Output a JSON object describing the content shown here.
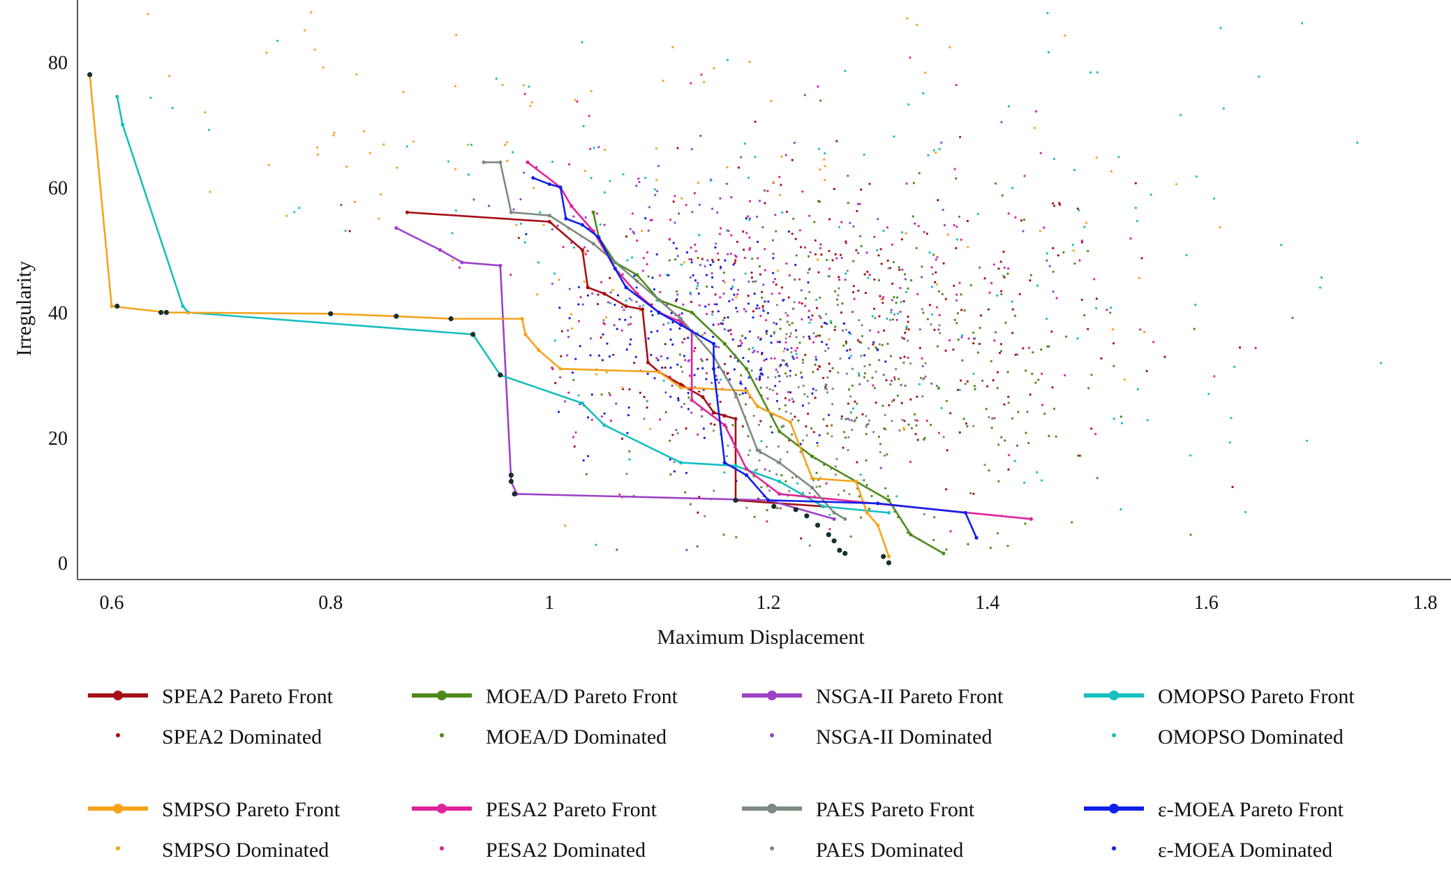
{
  "chart_data": {
    "type": "scatter",
    "title": "",
    "xlabel": "Maximum Displacement",
    "ylabel": "Irregularity",
    "xlim": [
      0.57,
      1.83
    ],
    "ylim": [
      -3,
      90
    ],
    "grid": false,
    "x_ticks": [
      0.6,
      0.8,
      1,
      1.2,
      1.4,
      1.6,
      1.8
    ],
    "x_tick_labels": [
      "0.6",
      "0.8",
      "1",
      "1.2",
      "1.4",
      "1.6",
      "1.8"
    ],
    "y_ticks": [
      0,
      20,
      40,
      60,
      80
    ],
    "y_tick_labels": [
      "0",
      "20",
      "40",
      "60",
      "80"
    ],
    "legend_position": "bottom",
    "series": [
      {
        "name": "SPEA2",
        "color": "#a50f15",
        "front_label": "SPEA2 Pareto Front",
        "dominated_label": "SPEA2 Dominated",
        "front": [
          [
            0.87,
            56
          ],
          [
            1.0,
            54.5
          ],
          [
            1.03,
            50
          ],
          [
            1.035,
            44
          ],
          [
            1.05,
            43
          ],
          [
            1.07,
            41
          ],
          [
            1.085,
            40.5
          ],
          [
            1.09,
            32
          ],
          [
            1.1,
            30.5
          ],
          [
            1.12,
            28.5
          ],
          [
            1.14,
            26.5
          ],
          [
            1.15,
            24
          ],
          [
            1.16,
            23.5
          ],
          [
            1.17,
            23
          ],
          [
            1.17,
            10
          ],
          [
            1.25,
            9
          ]
        ],
        "dominated_center": [
          1.27,
          38
        ],
        "dominated_spread": [
          0.13,
          13
        ],
        "dominated_count": 260
      },
      {
        "name": "MOEA/D",
        "color": "#4d8a1b",
        "front_label": "MOEA/D Pareto Front",
        "dominated_label": "MOEA/D Dominated",
        "front": [
          [
            1.04,
            56
          ],
          [
            1.045,
            52
          ],
          [
            1.06,
            48
          ],
          [
            1.08,
            46
          ],
          [
            1.1,
            42
          ],
          [
            1.13,
            40
          ],
          [
            1.16,
            35
          ],
          [
            1.18,
            31
          ],
          [
            1.21,
            21
          ],
          [
            1.24,
            17
          ],
          [
            1.28,
            13
          ],
          [
            1.31,
            10
          ],
          [
            1.33,
            4.5
          ],
          [
            1.36,
            1.5
          ]
        ],
        "dominated_center": [
          1.3,
          28
        ],
        "dominated_spread": [
          0.12,
          14
        ],
        "dominated_count": 300
      },
      {
        "name": "NSGA-II",
        "color": "#9c42c6",
        "front_label": "NSGA-II Pareto Front",
        "dominated_label": "NSGA-II Dominated",
        "front": [
          [
            0.86,
            53.5
          ],
          [
            0.9,
            50
          ],
          [
            0.92,
            48
          ],
          [
            0.955,
            47.5
          ],
          [
            0.965,
            13
          ],
          [
            0.97,
            11
          ],
          [
            1.2,
            10
          ],
          [
            1.26,
            7
          ]
        ],
        "dominated_center": [
          1.15,
          42
        ],
        "dominated_spread": [
          0.13,
          14
        ],
        "dominated_count": 220
      },
      {
        "name": "OMOPSO",
        "color": "#17bfbf",
        "front_label": "OMOPSO Pareto Front",
        "dominated_label": "OMOPSO Dominated",
        "front": [
          [
            0.605,
            74.5
          ],
          [
            0.61,
            70
          ],
          [
            0.665,
            41
          ],
          [
            0.67,
            40
          ],
          [
            0.93,
            36.5
          ],
          [
            0.955,
            30
          ],
          [
            1.03,
            25.5
          ],
          [
            1.05,
            22
          ],
          [
            1.12,
            16
          ],
          [
            1.17,
            15.5
          ],
          [
            1.21,
            13
          ],
          [
            1.25,
            9
          ],
          [
            1.31,
            8
          ]
        ],
        "dominated_center": [
          1.22,
          45
        ],
        "dominated_spread": [
          0.28,
          20
        ],
        "dominated_count": 200
      },
      {
        "name": "SMPSO",
        "color": "#f7a21b",
        "front_label": "SMPSO Pareto Front",
        "dominated_label": "SMPSO Dominated",
        "front": [
          [
            0.58,
            78
          ],
          [
            0.6,
            41
          ],
          [
            0.65,
            40
          ],
          [
            0.8,
            39.8
          ],
          [
            0.86,
            39.4
          ],
          [
            0.91,
            39
          ],
          [
            0.975,
            39
          ],
          [
            0.978,
            36.5
          ],
          [
            0.99,
            34
          ],
          [
            1.01,
            31
          ],
          [
            1.1,
            30.5
          ],
          [
            1.12,
            28
          ],
          [
            1.18,
            27.5
          ],
          [
            1.19,
            25
          ],
          [
            1.22,
            22.5
          ],
          [
            1.24,
            13.5
          ],
          [
            1.28,
            13
          ],
          [
            1.29,
            8
          ],
          [
            1.3,
            6
          ],
          [
            1.31,
            1
          ]
        ],
        "dominated_center": [
          0.95,
          55
        ],
        "dominated_spread": [
          0.33,
          22
        ],
        "dominated_count": 200
      },
      {
        "name": "PESA2",
        "color": "#e0239a",
        "front_label": "PESA2 Pareto Front",
        "dominated_label": "PESA2 Dominated",
        "front": [
          [
            0.98,
            64
          ],
          [
            1.01,
            60
          ],
          [
            1.02,
            57
          ],
          [
            1.04,
            53
          ],
          [
            1.06,
            47
          ],
          [
            1.08,
            43
          ],
          [
            1.1,
            40
          ],
          [
            1.12,
            38.5
          ],
          [
            1.13,
            37
          ],
          [
            1.13,
            26
          ],
          [
            1.16,
            22
          ],
          [
            1.18,
            15
          ],
          [
            1.21,
            11
          ],
          [
            1.44,
            7
          ]
        ],
        "dominated_center": [
          1.2,
          40
        ],
        "dominated_spread": [
          0.15,
          14
        ],
        "dominated_count": 220
      },
      {
        "name": "PAES",
        "color": "#7c8a80",
        "front_label": "PAES Pareto Front",
        "dominated_label": "PAES Dominated",
        "front": [
          [
            0.94,
            64
          ],
          [
            0.955,
            64
          ],
          [
            0.965,
            56
          ],
          [
            1.0,
            55.5
          ],
          [
            1.04,
            51
          ],
          [
            1.08,
            45
          ],
          [
            1.12,
            39
          ],
          [
            1.15,
            33
          ],
          [
            1.17,
            27
          ],
          [
            1.19,
            18
          ],
          [
            1.21,
            16
          ],
          [
            1.24,
            12
          ],
          [
            1.26,
            8
          ],
          [
            1.27,
            7
          ]
        ],
        "dominated_center": [
          1.23,
          26
        ],
        "dominated_spread": [
          0.06,
          10
        ],
        "dominated_count": 180
      },
      {
        "name": "ε-MOEA",
        "color": "#1020e8",
        "front_label": "ε-MOEA Pareto Front",
        "dominated_label": "ε-MOEA Dominated",
        "front": [
          [
            0.985,
            61.5
          ],
          [
            1.0,
            60.5
          ],
          [
            1.01,
            60
          ],
          [
            1.015,
            55
          ],
          [
            1.03,
            54
          ],
          [
            1.045,
            52
          ],
          [
            1.06,
            47
          ],
          [
            1.07,
            44
          ],
          [
            1.1,
            40
          ],
          [
            1.12,
            38
          ],
          [
            1.15,
            35
          ],
          [
            1.15,
            31
          ],
          [
            1.16,
            16
          ],
          [
            1.18,
            14
          ],
          [
            1.2,
            10
          ],
          [
            1.3,
            9.5
          ],
          [
            1.38,
            8
          ],
          [
            1.39,
            4
          ]
        ],
        "dominated_center": [
          1.15,
          36
        ],
        "dominated_spread": [
          0.07,
          9
        ],
        "dominated_count": 200
      }
    ],
    "highlight": {
      "name": "combined-front",
      "color": "#14302a",
      "points": [
        [
          0.58,
          78
        ],
        [
          0.605,
          41
        ],
        [
          0.645,
          40
        ],
        [
          0.65,
          40
        ],
        [
          0.8,
          39.8
        ],
        [
          0.86,
          39.4
        ],
        [
          0.91,
          39
        ],
        [
          0.93,
          36.5
        ],
        [
          0.955,
          30
        ],
        [
          0.965,
          14
        ],
        [
          0.965,
          13
        ],
        [
          0.968,
          11
        ],
        [
          1.17,
          10
        ],
        [
          1.205,
          9
        ],
        [
          1.225,
          8.5
        ],
        [
          1.235,
          7.5
        ],
        [
          1.245,
          6
        ],
        [
          1.255,
          4.5
        ],
        [
          1.26,
          3.5
        ],
        [
          1.265,
          2
        ],
        [
          1.27,
          1.5
        ],
        [
          1.305,
          1
        ],
        [
          1.31,
          0
        ]
      ]
    }
  }
}
